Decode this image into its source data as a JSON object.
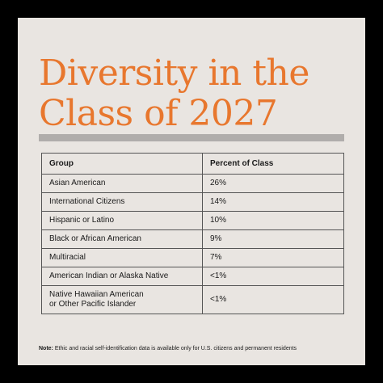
{
  "title_line1": "Diversity in the",
  "title_line2": "Class of 2027",
  "colors": {
    "background": "#000000",
    "card": "#e9e5e1",
    "accent": "#e8772e",
    "divider": "#b0adab"
  },
  "chart_data": {
    "type": "table",
    "title": "Diversity in the Class of 2027",
    "columns": [
      "Group",
      "Percent of Class"
    ],
    "rows": [
      {
        "group": "Asian American",
        "percent": "26%"
      },
      {
        "group": "International Citizens",
        "percent": "14%"
      },
      {
        "group": "Hispanic or Latino",
        "percent": "10%"
      },
      {
        "group": "Black or African American",
        "percent": "9%"
      },
      {
        "group": "Multiracial",
        "percent": "7%"
      },
      {
        "group": "American Indian or Alaska Native",
        "percent": "<1%"
      },
      {
        "group_line1": "Native Hawaiian American",
        "group_line2": "or Other Pacific Islander",
        "percent": "<1%"
      }
    ]
  },
  "note": {
    "label": "Note:",
    "text": " Ethic and racial self-identification data is available only for U.S. citizens and permanent residents"
  }
}
